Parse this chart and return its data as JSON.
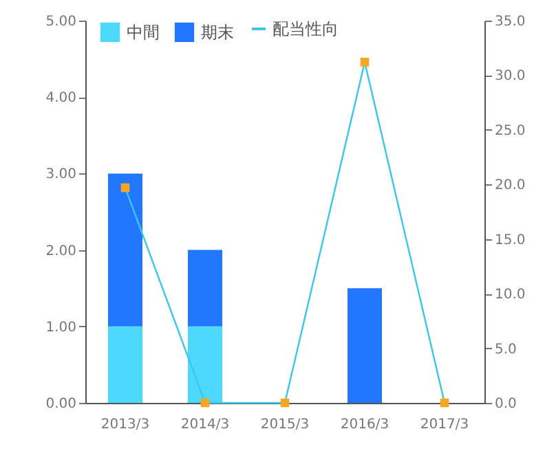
{
  "chart_data": {
    "type": "bar",
    "stacked": true,
    "categories": [
      "2013/3",
      "2014/3",
      "2015/3",
      "2016/3",
      "2017/3"
    ],
    "series": [
      {
        "name": "中間",
        "color": "#4dd9ff",
        "values": [
          1.0,
          1.0,
          null,
          null,
          null
        ]
      },
      {
        "name": "期末",
        "color": "#2277ff",
        "values": [
          2.0,
          1.0,
          null,
          1.5,
          null
        ]
      },
      {
        "name": "配当性向",
        "type": "line",
        "axis": "y2",
        "color": "#3cc6ee",
        "marker": "square",
        "colors": [
          "#f5a623",
          "#f5a623",
          "#f5a623",
          "#f5a623",
          "#f5a623"
        ],
        "values": [
          19.7,
          0.0,
          0.0,
          31.2,
          0.0
        ]
      }
    ],
    "ylim": [
      0,
      5
    ],
    "yticks": [
      {
        "value": 0,
        "label": "0.00"
      },
      {
        "value": 1,
        "label": "1.00"
      },
      {
        "value": 2,
        "label": "2.00"
      },
      {
        "value": 3,
        "label": "3.00"
      },
      {
        "value": 4,
        "label": "4.00"
      },
      {
        "value": 5,
        "label": "5.00"
      }
    ],
    "y2lim": [
      0,
      35
    ],
    "y2ticks": [
      {
        "value": 0,
        "label": "0.0"
      },
      {
        "value": 5,
        "label": "5.0"
      },
      {
        "value": 10,
        "label": "10.0"
      },
      {
        "value": 15,
        "label": "15.0"
      },
      {
        "value": 20,
        "label": "20.0"
      },
      {
        "value": 25,
        "label": "25.0"
      },
      {
        "value": 30,
        "label": "30.0"
      },
      {
        "value": 35,
        "label": "35.0"
      }
    ],
    "grid": false,
    "legend": "top left"
  }
}
